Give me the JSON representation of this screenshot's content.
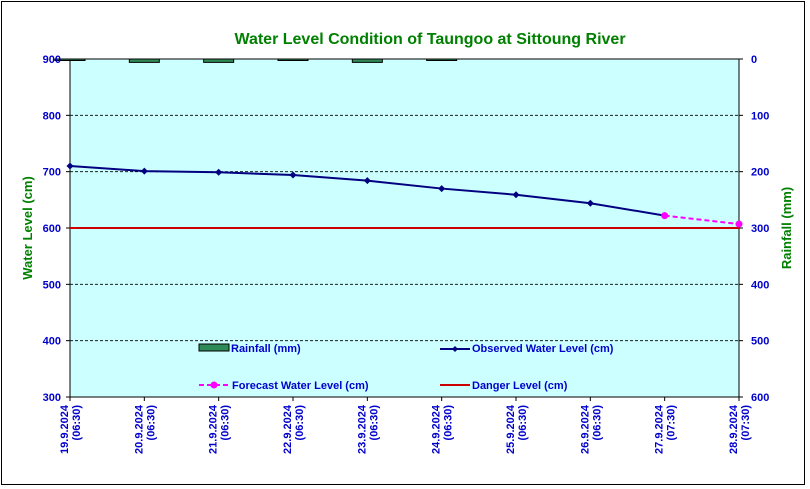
{
  "chart_data": {
    "type": "line",
    "title": "Water Level Condition of Taungoo at  Sittoung River",
    "ylabel": "Water Level (cm)",
    "y2label": "Rainfall (mm)",
    "ylim": [
      300,
      900
    ],
    "y2lim": [
      600,
      0
    ],
    "yticks": [
      "900",
      "800",
      "700",
      "600",
      "500",
      "400",
      "300"
    ],
    "y2ticks": [
      "0",
      "100",
      "200",
      "300",
      "400",
      "500",
      "600"
    ],
    "categories": [
      [
        "19.9.2024",
        "(06:30)"
      ],
      [
        "20.9.2024",
        "(06:30)"
      ],
      [
        "21.9.2024",
        "(06:30)"
      ],
      [
        "22.9.2024",
        "(06:30)"
      ],
      [
        "23.9.2024",
        "(06:30)"
      ],
      [
        "24.9.2024",
        "(06:30)"
      ],
      [
        "25.9.2024",
        "(06:30)"
      ],
      [
        "26.9.2024",
        "(06:30)"
      ],
      [
        "27.9.2024",
        "(07:30)"
      ],
      [
        "28.9.2024",
        "(07:30)"
      ]
    ],
    "series": [
      {
        "name": "Observed Water Level (cm)",
        "values": [
          710,
          701,
          699,
          694,
          684,
          670,
          659,
          644,
          622,
          null
        ],
        "color": "#000080"
      },
      {
        "name": "Forecast Water Level (cm)",
        "values": [
          null,
          null,
          null,
          null,
          null,
          null,
          null,
          null,
          622,
          607
        ],
        "color": "#ff00ff"
      },
      {
        "name": "Danger Level (cm)",
        "value": 600,
        "color": "#cc0000"
      },
      {
        "name": "Rainfall (mm)",
        "values": [
          2,
          6,
          6,
          1,
          6,
          2,
          null,
          null,
          null,
          null
        ],
        "color": "#2e8b57"
      }
    ],
    "grid": "horizontal dashed",
    "plot_background": "#ccffff",
    "title_color": "#008000",
    "tick_color": "#0000cc"
  }
}
